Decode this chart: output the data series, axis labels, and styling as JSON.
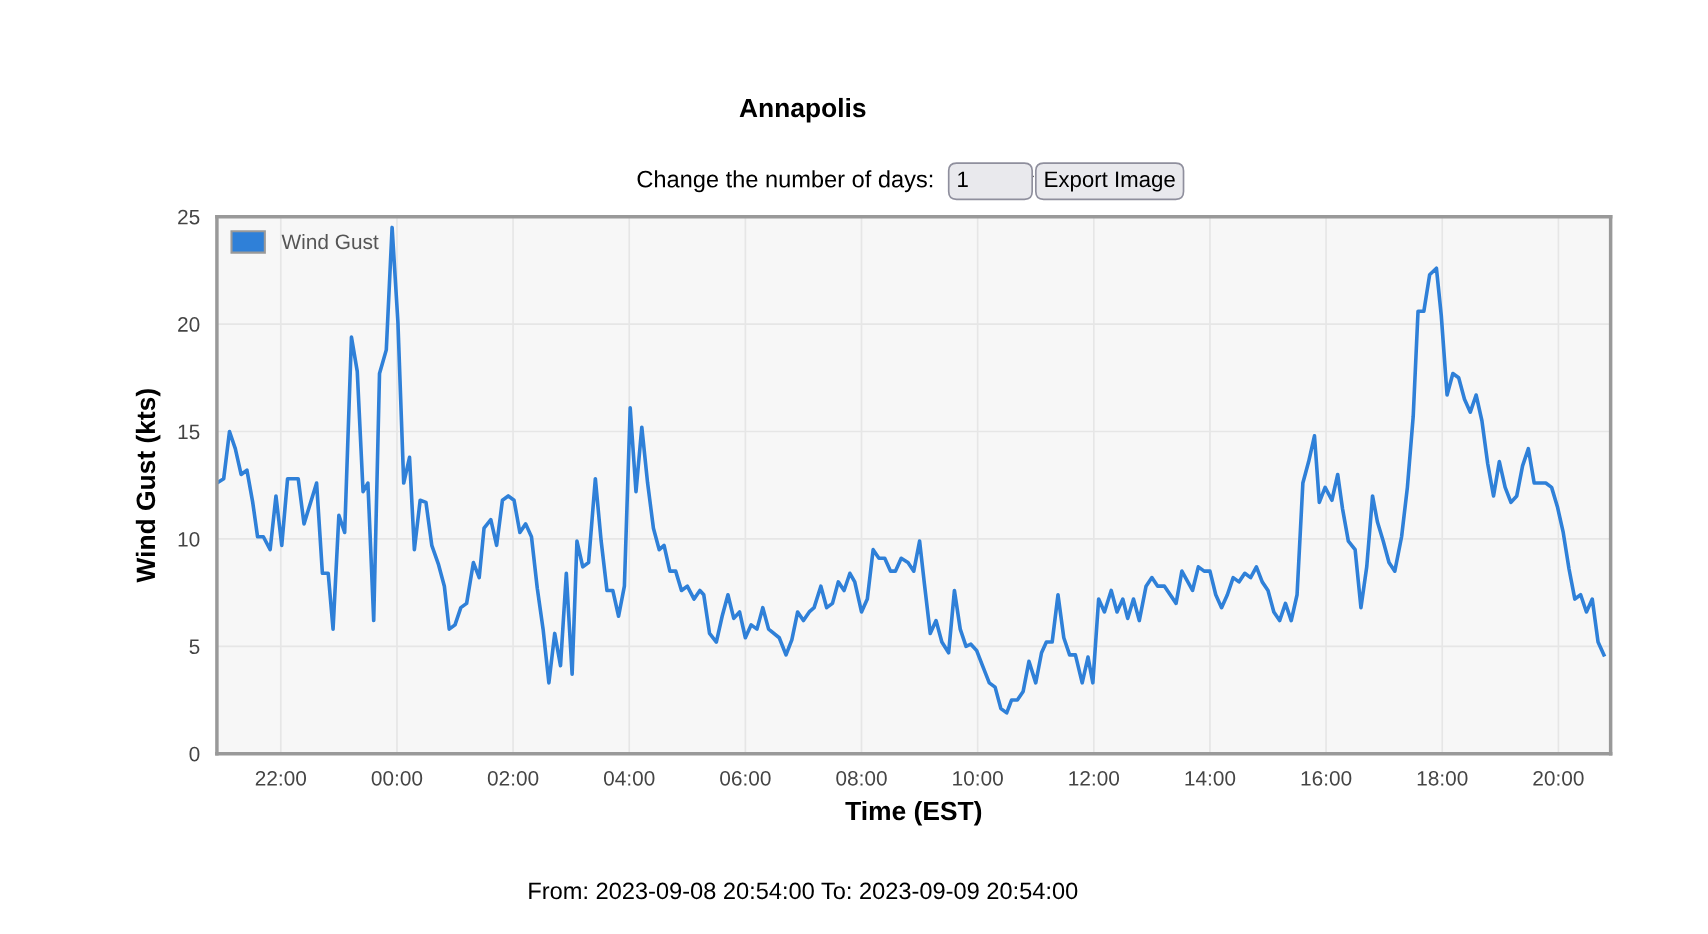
{
  "chart_data": {
    "type": "line",
    "title": "Annapolis",
    "xlabel": "Time (EST)",
    "ylabel": "Wind Gust (kts)",
    "annotations": [
      "Change the number of days:",
      "1",
      "Export Image",
      "From: 2023-09-08 20:54:00 To: 2023-09-09 20:54:00"
    ],
    "xlim": [
      "2023-09-08T20:54",
      "2023-09-09T20:54"
    ],
    "ylim": [
      0,
      25
    ],
    "xticks": [
      {
        "value": "2023-09-08T22:00",
        "label": "22:00"
      },
      {
        "value": "2023-09-09T00:00",
        "label": "00:00"
      },
      {
        "value": "2023-09-09T02:00",
        "label": "02:00"
      },
      {
        "value": "2023-09-09T04:00",
        "label": "04:00"
      },
      {
        "value": "2023-09-09T06:00",
        "label": "06:00"
      },
      {
        "value": "2023-09-09T08:00",
        "label": "08:00"
      },
      {
        "value": "2023-09-09T10:00",
        "label": "10:00"
      },
      {
        "value": "2023-09-09T12:00",
        "label": "12:00"
      },
      {
        "value": "2023-09-09T14:00",
        "label": "14:00"
      },
      {
        "value": "2023-09-09T16:00",
        "label": "16:00"
      },
      {
        "value": "2023-09-09T18:00",
        "label": "18:00"
      },
      {
        "value": "2023-09-09T20:00",
        "label": "20:00"
      }
    ],
    "yticks": [
      0,
      5,
      10,
      15,
      20,
      25
    ],
    "grid": true,
    "legend": "top left",
    "marker": "none",
    "line_style": "solid",
    "series": [
      {
        "name": "Wind Gust",
        "color": "#2f80d8",
        "x": [
          "2023-09-08T20:54",
          "2023-09-08T21:01",
          "2023-09-08T21:07",
          "2023-09-08T21:13",
          "2023-09-08T21:19",
          "2023-09-08T21:25",
          "2023-09-08T21:31",
          "2023-09-08T21:36",
          "2023-09-08T21:42",
          "2023-09-08T21:49",
          "2023-09-08T21:55",
          "2023-09-08T22:01",
          "2023-09-08T22:07",
          "2023-09-08T22:18",
          "2023-09-08T22:24",
          "2023-09-08T22:37",
          "2023-09-08T22:43",
          "2023-09-08T22:49",
          "2023-09-08T22:54",
          "2023-09-08T23:00",
          "2023-09-08T23:06",
          "2023-09-08T23:13",
          "2023-09-08T23:19",
          "2023-09-08T23:25",
          "2023-09-08T23:30",
          "2023-09-08T23:36",
          "2023-09-08T23:42",
          "2023-09-08T23:49",
          "2023-09-08T23:55",
          "2023-09-09T00:01",
          "2023-09-09T00:07",
          "2023-09-09T00:13",
          "2023-09-09T00:18",
          "2023-09-09T00:24",
          "2023-09-09T00:30",
          "2023-09-09T00:36",
          "2023-09-09T00:43",
          "2023-09-09T00:49",
          "2023-09-09T00:54",
          "2023-09-09T01:00",
          "2023-09-09T01:06",
          "2023-09-09T01:12",
          "2023-09-09T01:19",
          "2023-09-09T01:25",
          "2023-09-09T01:30",
          "2023-09-09T01:37",
          "2023-09-09T01:43",
          "2023-09-09T01:49",
          "2023-09-09T01:55",
          "2023-09-09T02:01",
          "2023-09-09T02:07",
          "2023-09-09T02:13",
          "2023-09-09T02:19",
          "2023-09-09T02:25",
          "2023-09-09T02:31",
          "2023-09-09T02:37",
          "2023-09-09T02:43",
          "2023-09-09T02:49",
          "2023-09-09T02:55",
          "2023-09-09T03:01",
          "2023-09-09T03:06",
          "2023-09-09T03:12",
          "2023-09-09T03:18",
          "2023-09-09T03:25",
          "2023-09-09T03:31",
          "2023-09-09T03:37",
          "2023-09-09T03:43",
          "2023-09-09T03:49",
          "2023-09-09T03:55",
          "2023-09-09T04:01",
          "2023-09-09T04:07",
          "2023-09-09T04:13",
          "2023-09-09T04:19",
          "2023-09-09T04:25",
          "2023-09-09T04:31",
          "2023-09-09T04:36",
          "2023-09-09T04:42",
          "2023-09-09T04:48",
          "2023-09-09T04:54",
          "2023-09-09T05:00",
          "2023-09-09T05:07",
          "2023-09-09T05:13",
          "2023-09-09T05:17",
          "2023-09-09T05:23",
          "2023-09-09T05:30",
          "2023-09-09T05:36",
          "2023-09-09T05:42",
          "2023-09-09T05:48",
          "2023-09-09T05:54",
          "2023-09-09T06:00",
          "2023-09-09T06:06",
          "2023-09-09T06:12",
          "2023-09-09T06:18",
          "2023-09-09T06:24",
          "2023-09-09T06:35",
          "2023-09-09T06:42",
          "2023-09-09T06:48",
          "2023-09-09T06:54",
          "2023-09-09T07:00",
          "2023-09-09T07:06",
          "2023-09-09T07:11",
          "2023-09-09T07:18",
          "2023-09-09T07:24",
          "2023-09-09T07:30",
          "2023-09-09T07:36",
          "2023-09-09T07:42",
          "2023-09-09T07:48",
          "2023-09-09T07:53",
          "2023-09-09T08:00",
          "2023-09-09T08:06",
          "2023-09-09T08:12",
          "2023-09-09T08:18",
          "2023-09-09T08:24",
          "2023-09-09T08:30",
          "2023-09-09T08:35",
          "2023-09-09T08:41",
          "2023-09-09T08:48",
          "2023-09-09T08:54",
          "2023-09-09T09:00",
          "2023-09-09T09:05",
          "2023-09-09T09:11",
          "2023-09-09T09:17",
          "2023-09-09T09:23",
          "2023-09-09T09:30",
          "2023-09-09T09:36",
          "2023-09-09T09:42",
          "2023-09-09T09:48",
          "2023-09-09T09:53",
          "2023-09-09T09:59",
          "2023-09-09T10:05",
          "2023-09-09T10:12",
          "2023-09-09T10:18",
          "2023-09-09T10:24",
          "2023-09-09T10:30",
          "2023-09-09T10:35",
          "2023-09-09T10:41",
          "2023-09-09T10:47",
          "2023-09-09T10:53",
          "2023-09-09T11:00",
          "2023-09-09T11:06",
          "2023-09-09T11:11",
          "2023-09-09T11:17",
          "2023-09-09T11:23",
          "2023-09-09T11:29",
          "2023-09-09T11:35",
          "2023-09-09T11:41",
          "2023-09-09T11:48",
          "2023-09-09T11:54",
          "2023-09-09T11:59",
          "2023-09-09T12:05",
          "2023-09-09T12:11",
          "2023-09-09T12:18",
          "2023-09-09T12:24",
          "2023-09-09T12:30",
          "2023-09-09T12:35",
          "2023-09-09T12:41",
          "2023-09-09T12:47",
          "2023-09-09T12:54",
          "2023-09-09T13:00",
          "2023-09-09T13:06",
          "2023-09-09T13:13",
          "2023-09-09T13:25",
          "2023-09-09T13:31",
          "2023-09-09T13:42",
          "2023-09-09T13:48",
          "2023-09-09T13:54",
          "2023-09-09T14:00",
          "2023-09-09T14:06",
          "2023-09-09T14:12",
          "2023-09-09T14:18",
          "2023-09-09T14:24",
          "2023-09-09T14:30",
          "2023-09-09T14:36",
          "2023-09-09T14:42",
          "2023-09-09T14:48",
          "2023-09-09T14:54",
          "2023-09-09T15:00",
          "2023-09-09T15:06",
          "2023-09-09T15:12",
          "2023-09-09T15:18",
          "2023-09-09T15:24",
          "2023-09-09T15:30",
          "2023-09-09T15:36",
          "2023-09-09T15:42",
          "2023-09-09T15:48",
          "2023-09-09T15:53",
          "2023-09-09T15:59",
          "2023-09-09T16:06",
          "2023-09-09T16:12",
          "2023-09-09T16:17",
          "2023-09-09T16:23",
          "2023-09-09T16:30",
          "2023-09-09T16:36",
          "2023-09-09T16:42",
          "2023-09-09T16:48",
          "2023-09-09T16:53",
          "2023-09-09T16:59",
          "2023-09-09T17:05",
          "2023-09-09T17:11",
          "2023-09-09T17:18",
          "2023-09-09T17:24",
          "2023-09-09T17:30",
          "2023-09-09T17:35",
          "2023-09-09T17:41",
          "2023-09-09T17:47",
          "2023-09-09T17:54",
          "2023-09-09T17:59",
          "2023-09-09T18:05",
          "2023-09-09T18:11",
          "2023-09-09T18:17",
          "2023-09-09T18:23",
          "2023-09-09T18:29",
          "2023-09-09T18:35",
          "2023-09-09T18:41",
          "2023-09-09T18:47",
          "2023-09-09T18:53",
          "2023-09-09T18:59",
          "2023-09-09T19:05",
          "2023-09-09T19:11",
          "2023-09-09T19:17",
          "2023-09-09T19:23",
          "2023-09-09T19:29",
          "2023-09-09T19:35",
          "2023-09-09T19:47",
          "2023-09-09T19:53",
          "2023-09-09T19:59",
          "2023-09-09T20:05",
          "2023-09-09T20:11",
          "2023-09-09T20:17",
          "2023-09-09T20:23",
          "2023-09-09T20:29",
          "2023-09-09T20:35",
          "2023-09-09T20:41",
          "2023-09-09T20:47"
        ],
        "values": [
          12.6,
          12.8,
          15.0,
          14.2,
          13.0,
          13.2,
          11.7,
          10.1,
          10.1,
          9.5,
          12.0,
          9.7,
          12.8,
          12.8,
          10.7,
          12.6,
          8.4,
          8.4,
          5.8,
          11.1,
          10.3,
          19.4,
          17.8,
          12.2,
          12.6,
          6.2,
          17.7,
          18.8,
          24.5,
          20.1,
          12.6,
          13.8,
          9.5,
          11.8,
          11.7,
          9.7,
          8.8,
          7.8,
          5.8,
          6.0,
          6.8,
          7.0,
          8.9,
          8.2,
          10.5,
          10.9,
          9.7,
          11.8,
          12.0,
          11.8,
          10.3,
          10.7,
          10.1,
          7.7,
          5.8,
          3.3,
          5.6,
          4.1,
          8.4,
          3.7,
          9.9,
          8.7,
          8.9,
          12.8,
          9.9,
          7.6,
          7.6,
          6.4,
          7.8,
          16.1,
          12.2,
          15.2,
          12.6,
          10.5,
          9.5,
          9.7,
          8.5,
          8.5,
          7.6,
          7.8,
          7.2,
          7.6,
          7.4,
          5.6,
          5.2,
          6.4,
          7.4,
          6.3,
          6.6,
          5.4,
          6.0,
          5.8,
          6.8,
          5.8,
          5.4,
          4.6,
          5.3,
          6.6,
          6.2,
          6.6,
          6.8,
          7.8,
          6.8,
          7.0,
          8.0,
          7.6,
          8.4,
          8.0,
          6.6,
          7.2,
          9.5,
          9.1,
          9.1,
          8.5,
          8.5,
          9.1,
          8.9,
          8.5,
          9.9,
          7.9,
          5.6,
          6.2,
          5.2,
          4.7,
          7.6,
          5.8,
          5.0,
          5.1,
          4.8,
          4.1,
          3.3,
          3.1,
          2.1,
          1.9,
          2.5,
          2.5,
          2.9,
          4.3,
          3.3,
          4.7,
          5.2,
          5.2,
          7.4,
          5.4,
          4.6,
          4.6,
          3.3,
          4.5,
          3.3,
          7.2,
          6.6,
          7.6,
          6.6,
          7.2,
          6.3,
          7.2,
          6.2,
          7.8,
          8.2,
          7.8,
          7.8,
          7.0,
          8.5,
          7.6,
          8.7,
          8.5,
          8.5,
          7.4,
          6.8,
          7.4,
          8.2,
          8.0,
          8.4,
          8.2,
          8.7,
          8.0,
          7.6,
          6.6,
          6.2,
          7.0,
          6.2,
          7.4,
          12.6,
          13.6,
          14.8,
          11.7,
          12.4,
          11.8,
          13.0,
          11.4,
          9.9,
          9.5,
          6.8,
          8.7,
          12.0,
          10.8,
          9.9,
          8.9,
          8.5,
          10.1,
          12.4,
          15.7,
          20.6,
          20.6,
          22.3,
          22.6,
          20.4,
          16.7,
          17.7,
          17.5,
          16.5,
          15.9,
          16.7,
          15.5,
          13.5,
          12.0,
          13.6,
          12.4,
          11.7,
          12.0,
          13.4,
          14.2,
          12.6,
          12.6,
          12.4,
          11.5,
          10.3,
          8.6,
          7.2,
          7.4,
          6.6,
          7.2,
          5.2,
          4.6
        ]
      }
    ]
  }
}
